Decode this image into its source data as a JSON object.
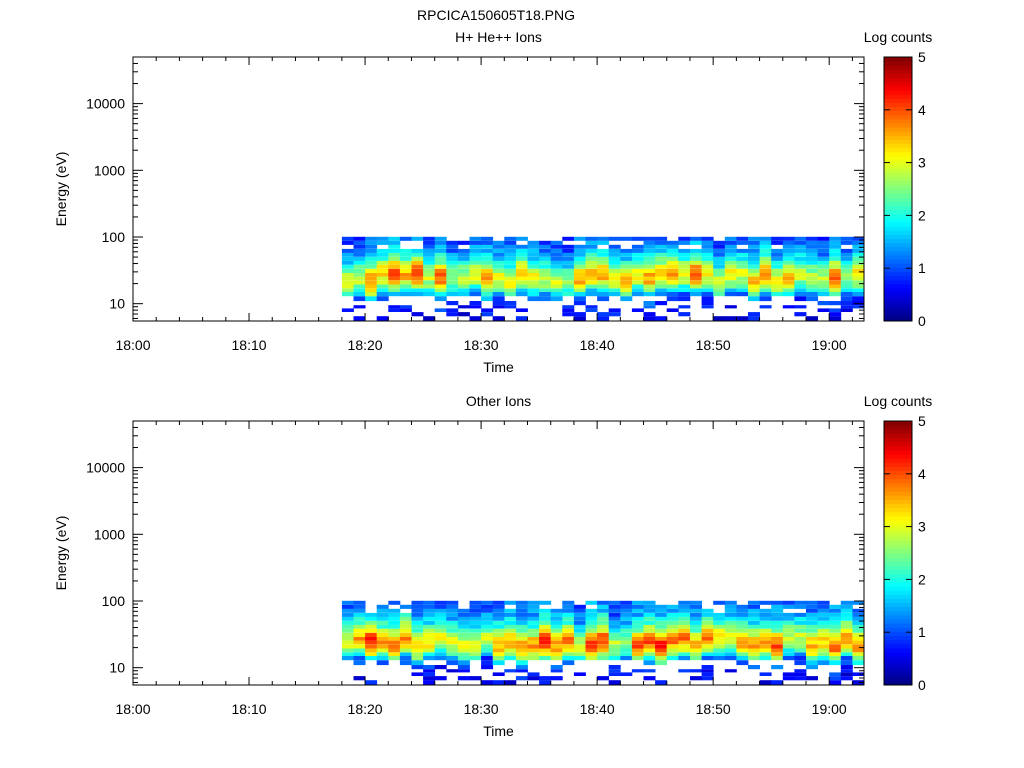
{
  "figure_title": "RPCICA150605T18.PNG",
  "chart_data": [
    {
      "type": "heatmap",
      "title": "H+ He++ Ions",
      "xlabel": "Time",
      "ylabel": "Energy (eV)",
      "x_ticks": [
        "18:00",
        "18:10",
        "18:20",
        "18:30",
        "18:40",
        "18:50",
        "19:00"
      ],
      "xlim": [
        "18:00",
        "19:03"
      ],
      "y_scale": "log",
      "y_ticks": [
        10,
        100,
        1000,
        10000
      ],
      "y_tick_labels": [
        "10",
        "100",
        "1000",
        "10000"
      ],
      "ylim": [
        5.5,
        50000
      ],
      "colorbar": {
        "label": "Log counts",
        "range": [
          0,
          5
        ],
        "ticks": [
          "0",
          "1",
          "2",
          "3",
          "4",
          "5"
        ],
        "colormap": "jet"
      },
      "data_start": "18:18",
      "data_end": "19:03",
      "time_resolution_min": 1,
      "energy_bins_eV": [
        6,
        7,
        8,
        9,
        10,
        12,
        14,
        16,
        18,
        21,
        24,
        27,
        31,
        36,
        41,
        47,
        54,
        62,
        71,
        82,
        94
      ],
      "spectrum_profile_log_counts": [
        0.6,
        0.7,
        0.8,
        0.9,
        1.0,
        1.3,
        1.8,
        2.4,
        2.9,
        3.3,
        3.5,
        3.4,
        3.1,
        2.7,
        2.3,
        2.0,
        1.7,
        1.5,
        1.3,
        1.2,
        1.1
      ],
      "seed": 7
    },
    {
      "type": "heatmap",
      "title": "Other Ions",
      "xlabel": "Time",
      "ylabel": "Energy (eV)",
      "x_ticks": [
        "18:00",
        "18:10",
        "18:20",
        "18:30",
        "18:40",
        "18:50",
        "19:00"
      ],
      "xlim": [
        "18:00",
        "19:03"
      ],
      "y_scale": "log",
      "y_ticks": [
        10,
        100,
        1000,
        10000
      ],
      "y_tick_labels": [
        "10",
        "100",
        "1000",
        "10000"
      ],
      "ylim": [
        5.5,
        50000
      ],
      "colorbar": {
        "label": "Log counts",
        "range": [
          0,
          5
        ],
        "ticks": [
          "0",
          "1",
          "2",
          "3",
          "4",
          "5"
        ],
        "colormap": "jet"
      },
      "data_start": "18:18",
      "data_end": "19:03",
      "time_resolution_min": 1,
      "energy_bins_eV": [
        6,
        7,
        8,
        9,
        10,
        12,
        14,
        16,
        18,
        21,
        24,
        27,
        31,
        36,
        41,
        47,
        54,
        62,
        71,
        82,
        94
      ],
      "spectrum_profile_log_counts": [
        0.5,
        0.6,
        0.7,
        0.8,
        0.9,
        1.2,
        1.8,
        2.5,
        3.0,
        3.4,
        3.6,
        3.5,
        3.2,
        2.8,
        2.4,
        2.1,
        1.8,
        1.6,
        1.4,
        1.3,
        1.2
      ],
      "seed": 23
    }
  ]
}
